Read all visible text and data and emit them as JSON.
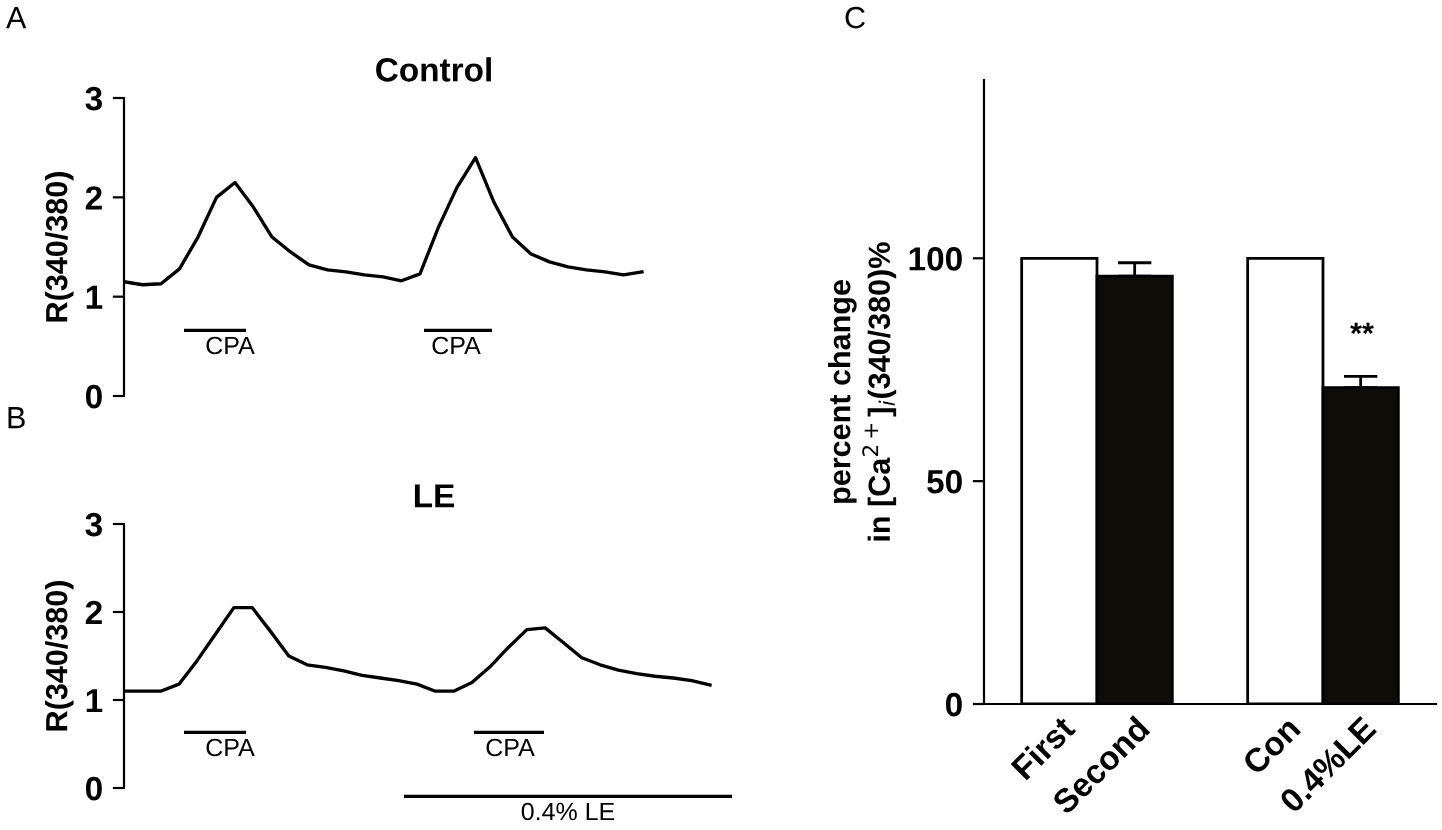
{
  "chart_data": [
    {
      "type": "line",
      "title": "Control",
      "ylabel": "R(340/380)",
      "ylim": [
        0,
        3
      ],
      "yticks": [
        0,
        1,
        2,
        3
      ],
      "tick_labels": "y",
      "categories": [
        null,
        null,
        null,
        null,
        null,
        null,
        null,
        null,
        null,
        null,
        null,
        null,
        null,
        null,
        null,
        null,
        null,
        null,
        null,
        null,
        null,
        null,
        null,
        null,
        null,
        null,
        null,
        null,
        null
      ],
      "series": [
        {
          "color": "#000000",
          "values": [
            1.15,
            1.12,
            1.13,
            1.28,
            1.6,
            2.0,
            2.15,
            1.9,
            1.6,
            1.45,
            1.32,
            1.27,
            1.25,
            1.22,
            1.2,
            1.16,
            1.23,
            1.7,
            2.1,
            2.4,
            1.95,
            1.6,
            1.43,
            1.35,
            1.3,
            1.27,
            1.25,
            1.22,
            1.25
          ]
        }
      ],
      "annotations": [
        "A",
        "CPA",
        "CPA"
      ]
    },
    {
      "type": "line",
      "title": "LE",
      "ylabel": "R(340/380)",
      "ylim": [
        0,
        3
      ],
      "yticks": [
        0,
        1,
        2,
        3
      ],
      "tick_labels": "y",
      "categories": [
        null,
        null,
        null,
        null,
        null,
        null,
        null,
        null,
        null,
        null,
        null,
        null,
        null,
        null,
        null,
        null,
        null,
        null,
        null,
        null,
        null,
        null,
        null,
        null,
        null,
        null,
        null,
        null,
        null,
        null,
        null,
        null,
        null
      ],
      "series": [
        {
          "color": "#000000",
          "values": [
            1.1,
            1.1,
            1.1,
            1.18,
            1.45,
            1.75,
            2.05,
            2.05,
            1.78,
            1.5,
            1.4,
            1.37,
            1.33,
            1.28,
            1.25,
            1.22,
            1.18,
            1.1,
            1.1,
            1.2,
            1.38,
            1.6,
            1.8,
            1.82,
            1.65,
            1.48,
            1.4,
            1.34,
            1.3,
            1.27,
            1.25,
            1.22,
            1.17
          ]
        }
      ],
      "annotations": [
        "B",
        "CPA",
        "CPA",
        "0.4% LE"
      ]
    },
    {
      "type": "bar",
      "ylabel": "percent change\nin [Ca$^{2+}$]$_{i}$(340/380)%",
      "categories": [
        "First",
        "Second",
        null,
        "Con",
        "0.4%LE"
      ],
      "values": [
        100,
        96,
        null,
        100,
        71
      ],
      "errors": [
        null,
        3,
        null,
        null,
        2.5
      ],
      "colors": [
        "#ffffff",
        "#0d0d05",
        "#ffffff",
        "#ffffff",
        "#0d0d05"
      ],
      "ylim": [
        0,
        140
      ],
      "yticks": [
        0,
        50,
        100
      ],
      "annotations": [
        "C",
        "**"
      ]
    }
  ]
}
